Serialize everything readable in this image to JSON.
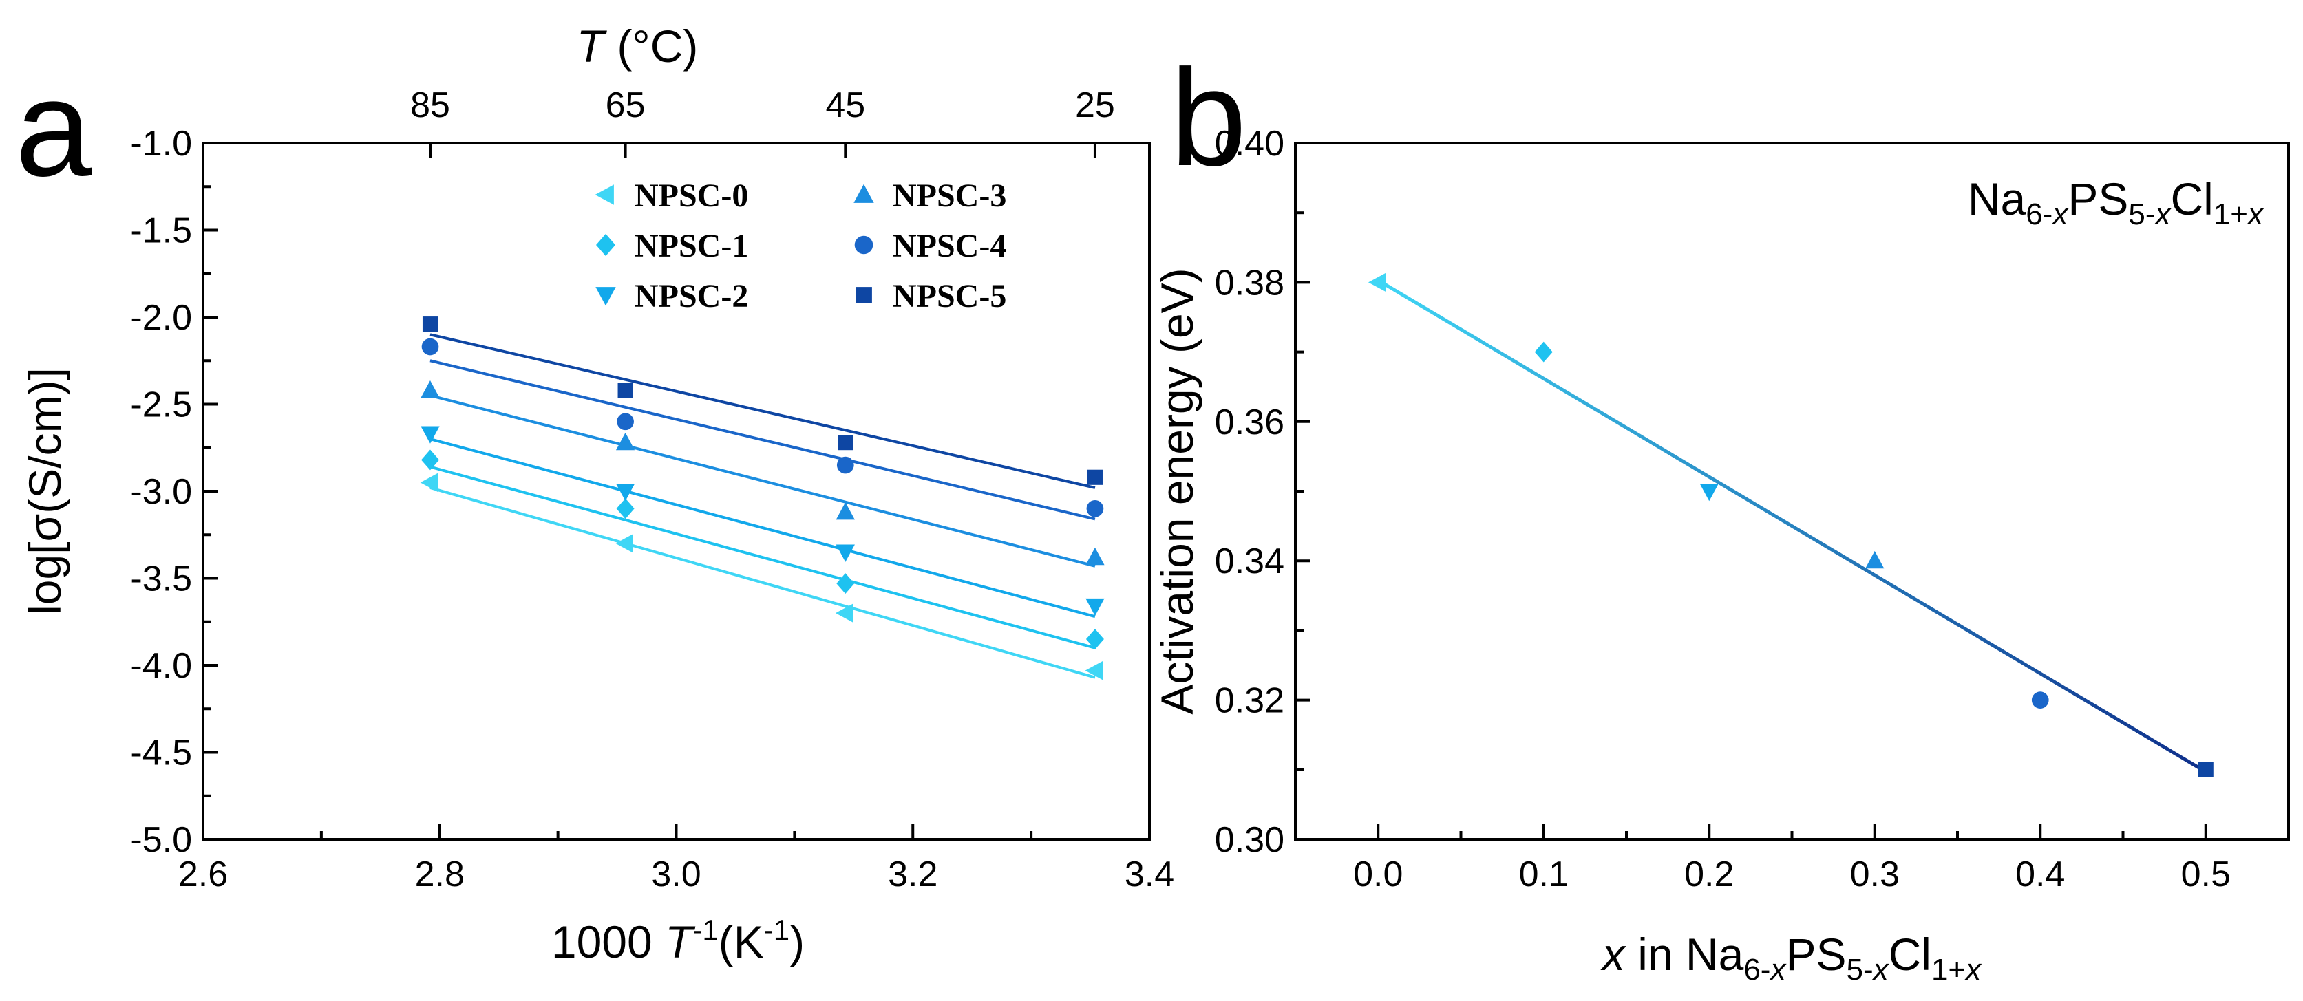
{
  "chart_data": [
    {
      "panel": "a",
      "type": "scatter",
      "xlabel": {
        "prefix": "1000 ",
        "T": "T",
        "sup": "-1",
        "units": "(K",
        "units_sup": "-1",
        "close": ")"
      },
      "ylabel": "log[σ(S/cm)]",
      "top_axis": {
        "T": "T",
        "units": " (°C)",
        "ticks": [
          "85",
          "65",
          "45",
          "25"
        ]
      },
      "xlim": [
        2.6,
        3.4
      ],
      "ylim": [
        -5.0,
        -1.0
      ],
      "xticks": [
        "2.6",
        "2.8",
        "3.0",
        "3.2",
        "3.4"
      ],
      "yticks": [
        "-1.0",
        "-1.5",
        "-2.0",
        "-2.5",
        "-3.0",
        "-3.5",
        "-4.0",
        "-4.5",
        "-5.0"
      ],
      "x": [
        2.792,
        2.957,
        3.143,
        3.354
      ],
      "series": [
        {
          "name": "NPSC-0",
          "marker": "triangle-left",
          "color": "#3FD6F5",
          "values": [
            -2.95,
            -3.3,
            -3.7,
            -4.03
          ],
          "fit": [
            -2.98,
            -4.07
          ]
        },
        {
          "name": "NPSC-1",
          "marker": "diamond",
          "color": "#1EC2F0",
          "values": [
            -2.82,
            -3.1,
            -3.53,
            -3.85
          ],
          "fit": [
            -2.86,
            -3.9
          ]
        },
        {
          "name": "NPSC-2",
          "marker": "triangle-down",
          "color": "#12A8EB",
          "values": [
            -2.67,
            -3.0,
            -3.35,
            -3.66
          ],
          "fit": [
            -2.7,
            -3.72
          ]
        },
        {
          "name": "NPSC-3",
          "marker": "triangle-up",
          "color": "#1C8EE0",
          "values": [
            -2.42,
            -2.72,
            -3.12,
            -3.38
          ],
          "fit": [
            -2.45,
            -3.43
          ]
        },
        {
          "name": "NPSC-4",
          "marker": "circle",
          "color": "#1A66C9",
          "values": [
            -2.17,
            -2.6,
            -2.85,
            -3.1
          ],
          "fit": [
            -2.25,
            -3.16
          ]
        },
        {
          "name": "NPSC-5",
          "marker": "square",
          "color": "#0E46A3",
          "values": [
            -2.04,
            -2.42,
            -2.72,
            -2.92
          ],
          "fit": [
            -2.1,
            -2.98
          ]
        }
      ],
      "legend": "top-right"
    },
    {
      "panel": "b",
      "type": "scatter",
      "xlabel": {
        "x": "x",
        "text": " in Na",
        "sub1": "6-",
        "sub1x": "x",
        "mid1": "PS",
        "sub2": "5-",
        "sub2x": "x",
        "mid2": "Cl",
        "sub3": "1+",
        "sub3x": "x"
      },
      "ylabel": "Activation energy (eV)",
      "annotation": {
        "a": "Na",
        "s1": "6-",
        "s1x": "x",
        "b": "PS",
        "s2": "5-",
        "s2x": "x",
        "c": "Cl",
        "s3": "1+",
        "s3x": "x"
      },
      "xlim": [
        -0.05,
        0.55
      ],
      "ylim": [
        0.3,
        0.4
      ],
      "xticks": [
        "0.0",
        "0.1",
        "0.2",
        "0.3",
        "0.4",
        "0.5"
      ],
      "yticks": [
        "0.30",
        "0.32",
        "0.34",
        "0.36",
        "0.38",
        "0.40"
      ],
      "points": [
        {
          "x": 0.0,
          "y": 0.38,
          "marker": "triangle-left",
          "color": "#3FD6F5"
        },
        {
          "x": 0.1,
          "y": 0.37,
          "marker": "diamond",
          "color": "#1EC2F0"
        },
        {
          "x": 0.2,
          "y": 0.35,
          "marker": "triangle-down",
          "color": "#12A8EB"
        },
        {
          "x": 0.3,
          "y": 0.34,
          "marker": "triangle-up",
          "color": "#1C8EE0"
        },
        {
          "x": 0.4,
          "y": 0.32,
          "marker": "circle",
          "color": "#1A66C9"
        },
        {
          "x": 0.5,
          "y": 0.31,
          "marker": "square",
          "color": "#0E46A3"
        }
      ],
      "fit": {
        "x": [
          0.0,
          0.5
        ],
        "y": [
          0.3803,
          0.3097
        ],
        "color_start": "#3FD6F5",
        "color_end": "#0E2E8A"
      }
    }
  ]
}
